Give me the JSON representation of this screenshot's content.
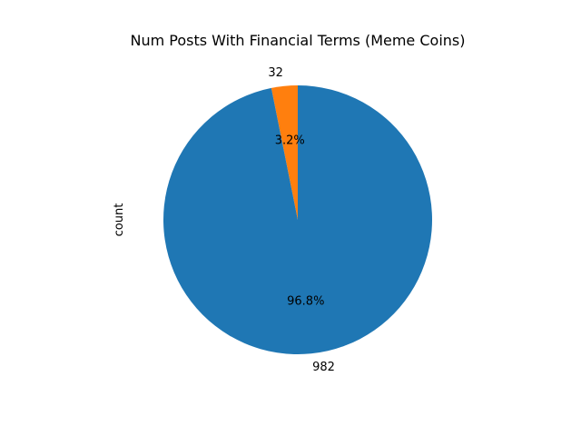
{
  "chart_data": {
    "type": "pie",
    "title": "Num Posts With Financial Terms (Meme Coins)",
    "ylabel": "count",
    "slices": [
      {
        "label": "32",
        "value": 32,
        "percent_label": "3.2%",
        "color": "#ff7f0e"
      },
      {
        "label": "982",
        "value": 982,
        "percent_label": "96.8%",
        "color": "#1f77b4"
      }
    ],
    "start_angle_deg": 90,
    "direction": "counterclockwise",
    "legend": "none",
    "grid": false
  }
}
